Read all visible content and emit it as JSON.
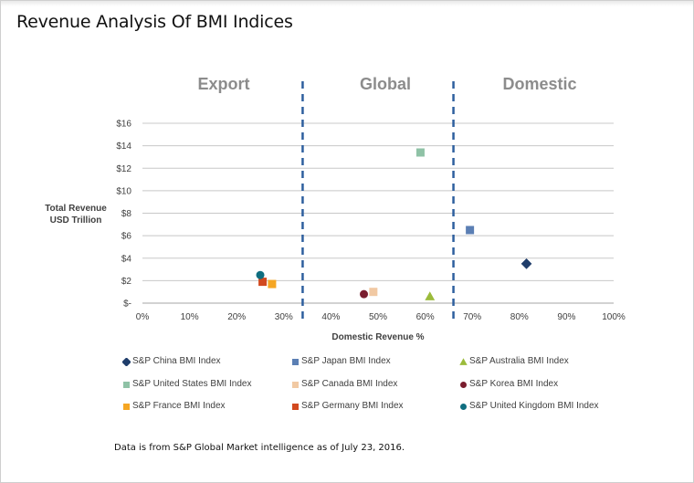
{
  "title": "Revenue Analysis Of BMI Indices",
  "footnote": "Data is from S&P Global Market intelligence as of July 23, 2016.",
  "chart_data": {
    "type": "scatter",
    "xlabel": "Domestic Revenue %",
    "ylabel_lines": [
      "Total Revenue",
      "USD Trillion"
    ],
    "xlim": [
      0,
      1
    ],
    "ylim": [
      0,
      16
    ],
    "x_ticks": [
      {
        "value": 0,
        "label": "0%"
      },
      {
        "value": 0.1,
        "label": "10%"
      },
      {
        "value": 0.2,
        "label": "20%"
      },
      {
        "value": 0.3,
        "label": "30%"
      },
      {
        "value": 0.4,
        "label": "40%"
      },
      {
        "value": 0.5,
        "label": "50%"
      },
      {
        "value": 0.6,
        "label": "60%"
      },
      {
        "value": 0.7,
        "label": "70%"
      },
      {
        "value": 0.8,
        "label": "80%"
      },
      {
        "value": 0.9,
        "label": "90%"
      },
      {
        "value": 1.0,
        "label": "100%"
      }
    ],
    "y_ticks": [
      {
        "value": 0,
        "label": "$-"
      },
      {
        "value": 2,
        "label": "$2"
      },
      {
        "value": 4,
        "label": "$4"
      },
      {
        "value": 6,
        "label": "$6"
      },
      {
        "value": 8,
        "label": "$8"
      },
      {
        "value": 10,
        "label": "$10"
      },
      {
        "value": 12,
        "label": "$12"
      },
      {
        "value": 14,
        "label": "$14"
      },
      {
        "value": 16,
        "label": "$16"
      }
    ],
    "grid": "horizontal",
    "legend_position": "bottom",
    "regions": [
      {
        "label": "Export",
        "from": 0,
        "to": 0.34
      },
      {
        "label": "Global",
        "from": 0.34,
        "to": 0.66
      },
      {
        "label": "Domestic",
        "from": 0.66,
        "to": 1.0
      }
    ],
    "dividers": [
      0.34,
      0.66
    ],
    "divider_color": "#2e5f9e",
    "region_label_color": "#8c8c8c",
    "series": [
      {
        "name": "S&P China BMI Index",
        "marker": "diamond",
        "color": "#1f3d6b",
        "x": 0.815,
        "y": 3.5
      },
      {
        "name": "S&P Japan BMI Index",
        "marker": "square",
        "color": "#5b7fb4",
        "x": 0.695,
        "y": 6.5
      },
      {
        "name": "S&P Australia BMI Index",
        "marker": "triangle",
        "color": "#9bbb3b",
        "x": 0.61,
        "y": 0.6
      },
      {
        "name": "S&P United States BMI Index",
        "marker": "square",
        "color": "#8fc2a6",
        "x": 0.59,
        "y": 13.4
      },
      {
        "name": "S&P Canada BMI Index",
        "marker": "square",
        "color": "#f1c9a3",
        "x": 0.49,
        "y": 1.0
      },
      {
        "name": "S&P Korea BMI Index",
        "marker": "circle",
        "color": "#7a1d2e",
        "x": 0.47,
        "y": 0.8
      },
      {
        "name": "S&P France BMI Index",
        "marker": "square",
        "color": "#f5a623",
        "x": 0.275,
        "y": 1.7
      },
      {
        "name": "S&P Germany BMI Index",
        "marker": "square",
        "color": "#d2491f",
        "x": 0.255,
        "y": 1.9
      },
      {
        "name": "S&P United Kingdom BMI Index",
        "marker": "circle",
        "color": "#0f6e80",
        "x": 0.25,
        "y": 2.5
      }
    ]
  }
}
